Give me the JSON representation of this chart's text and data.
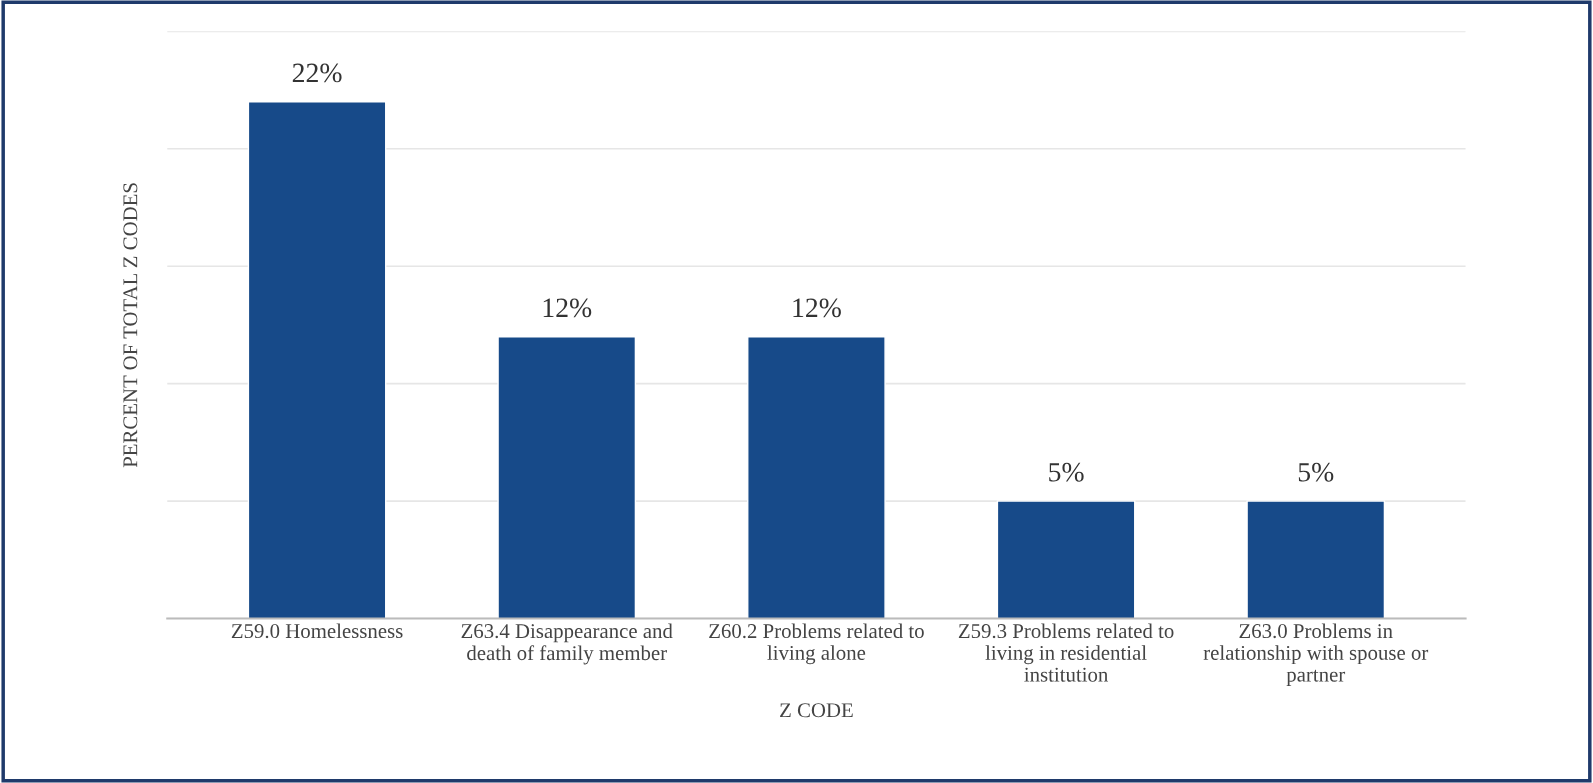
{
  "chart_data": {
    "type": "bar",
    "xlabel": "Z CODE",
    "ylabel": "PERCENT OF TOTAL Z CODES",
    "categories": [
      "Z59.0 Homelessness",
      "Z63.4 Disappearance and death of family member",
      "Z60.2 Problems related to living alone",
      "Z59.3 Problems related to living in residential institution",
      "Z63.0 Problems in relationship with spouse or partner"
    ],
    "values": [
      22,
      12,
      12,
      5,
      5
    ],
    "value_labels": [
      "22%",
      "12%",
      "12%",
      "5%",
      "5%"
    ],
    "color": "#174a89",
    "ylim": [
      0,
      25
    ],
    "yticks": [
      {
        "value": 0,
        "label": null
      },
      {
        "value": 5,
        "label": null
      },
      {
        "value": 10,
        "label": null
      },
      {
        "value": 15,
        "label": null
      },
      {
        "value": 20,
        "label": null
      },
      {
        "value": 25,
        "label": null
      }
    ],
    "grid": "y",
    "tick_labels": "x"
  }
}
